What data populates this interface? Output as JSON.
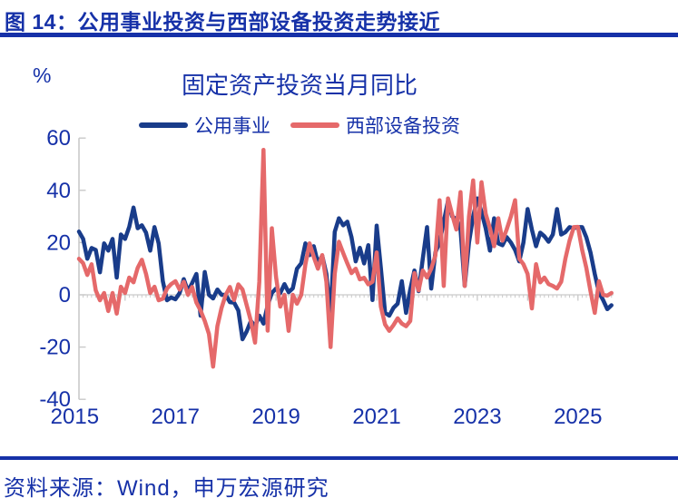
{
  "header": {
    "title": "图 14：公用事业投资与西部设备投资走势接近"
  },
  "chart": {
    "colors": {
      "text_blue": "#1631A8",
      "utilities_line": "#193C8A",
      "west_equipment_line": "#E5696A",
      "axis_gray": "#C9C9C9"
    }
  },
  "chart_data": {
    "type": "line",
    "title": "固定资产投资当月同比",
    "ylabel": "%",
    "ylim": [
      -40,
      60
    ],
    "yticks": [
      60,
      40,
      20,
      0,
      -20,
      -40
    ],
    "xticks": [
      "2015",
      "2017",
      "2019",
      "2021",
      "2023",
      "2025"
    ],
    "x_start": "2015-02",
    "x_end": "2025-09",
    "x_freq": "monthly",
    "legend_position": "top-center",
    "grid": false,
    "series": [
      {
        "key": "utilities",
        "name": "公用事业",
        "color": "#193C8A",
        "values": [
          24.2,
          21.4,
          13.8,
          17.9,
          17.2,
          8.6,
          19.7,
          16.9,
          21.4,
          6.6,
          23.1,
          21.4,
          26.0,
          33.4,
          25.5,
          26.6,
          23.8,
          16.9,
          25.9,
          19.7,
          5.2,
          -2.1,
          -1.0,
          -1.7,
          0.7,
          6.0,
          1.4,
          4.5,
          8.0,
          -8.0,
          8.7,
          0.0,
          -1.4,
          2.0,
          0.0,
          0.0,
          -2.8,
          -3.0,
          -6.0,
          -17.0,
          -14.0,
          -10.0,
          -12.0,
          -8.0,
          -11.0,
          -4.0,
          0.7,
          2.4,
          0.7,
          4.1,
          1.0,
          2.5,
          10.0,
          12.1,
          19.7,
          15.2,
          18.6,
          12.1,
          15.0,
          8.0,
          -7.9,
          24.1,
          29.3,
          26.6,
          28.0,
          22.0,
          12.8,
          18.0,
          12.0,
          19.0,
          -2.0,
          26.5,
          10.3,
          -6.9,
          -8.0,
          -5.0,
          -3.4,
          5.2,
          -6.9,
          2.0,
          9.3,
          1.4,
          13.8,
          25.9,
          2.4,
          16.2,
          20.0,
          28.0,
          35.9,
          30.0,
          29.0,
          25.0,
          3.4,
          20.0,
          30.0,
          36.9,
          31.7,
          25.5,
          16.9,
          29.3,
          19.7,
          19.0,
          22.1,
          20.0,
          17.2,
          12.8,
          20.0,
          32.8,
          25.0,
          18.6,
          23.8,
          22.4,
          20.3,
          23.1,
          32.8,
          23.1,
          24.0,
          25.9,
          25.5,
          25.9,
          25.9,
          22.0,
          16.2,
          8.0,
          1.0,
          -2.0,
          -5.5,
          -4.0
        ]
      },
      {
        "key": "west_equipment",
        "name": "西部设备投资",
        "color": "#E5696A",
        "values": [
          13.8,
          12.1,
          7.6,
          11.7,
          1.7,
          -2.1,
          0.7,
          -6.2,
          0.7,
          -7.2,
          3.1,
          0.7,
          6.6,
          4.8,
          10.3,
          13.4,
          8.0,
          0.7,
          3.1,
          -2.1,
          -1.5,
          2.4,
          4.1,
          5.2,
          2.0,
          5.0,
          0.0,
          3.0,
          -3.0,
          -6.0,
          -10.0,
          -15.0,
          -27.5,
          -12.0,
          -5.0,
          0.0,
          3.0,
          -2.0,
          4.0,
          2.0,
          -4.0,
          -10.0,
          -18.3,
          5.0,
          55.5,
          -13.7,
          25.5,
          6.9,
          -4.5,
          0.0,
          -13.8,
          0.0,
          -3.4,
          0.0,
          11.7,
          19.7,
          14.5,
          10.0,
          15.2,
          5.0,
          -20.0,
          8.0,
          20.3,
          16.0,
          12.0,
          8.3,
          10.0,
          5.9,
          6.5,
          4.0,
          5.0,
          16.2,
          -4.5,
          -11.4,
          -13.8,
          -11.6,
          -9.0,
          -11.0,
          -12.0,
          -10.0,
          8.3,
          1.7,
          9.3,
          6.6,
          10.0,
          15.0,
          36.2,
          3.4,
          36.9,
          30.7,
          25.0,
          39.3,
          3.4,
          30.0,
          43.8,
          20.0,
          43.1,
          31.0,
          25.5,
          18.6,
          29.3,
          20.7,
          25.0,
          30.0,
          36.2,
          13.8,
          11.7,
          8.0,
          -5.2,
          11.7,
          4.8,
          6.6,
          4.1,
          3.4,
          2.4,
          5.0,
          13.8,
          20.7,
          25.9,
          26.0,
          17.2,
          10.3,
          1.4,
          -6.9,
          5.2,
          0.0,
          -0.3,
          0.7
        ]
      }
    ]
  },
  "footer": {
    "source": "资料来源：Wind，申万宏源研究"
  }
}
